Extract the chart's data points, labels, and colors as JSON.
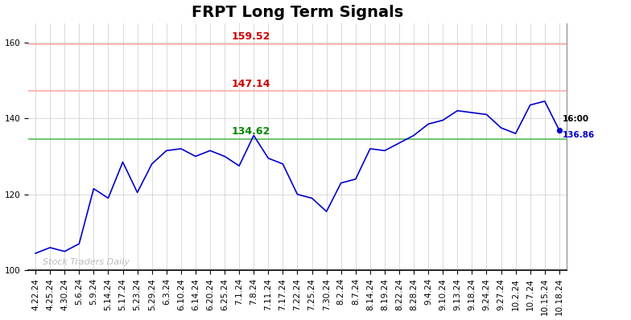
{
  "title": "FRPT Long Term Signals",
  "watermark": "Stock Traders Daily",
  "hline_red1": 159.52,
  "hline_red2": 147.14,
  "hline_green": 134.62,
  "label_red1": "159.52",
  "label_red2": "147.14",
  "label_green": "134.62",
  "last_price": 136.86,
  "last_label": "16:00",
  "ylim": [
    100,
    165
  ],
  "yticks": [
    100,
    120,
    140,
    160
  ],
  "x_labels": [
    "4.22.24",
    "4.25.24",
    "4.30.24",
    "5.6.24",
    "5.9.24",
    "5.14.24",
    "5.17.24",
    "5.23.24",
    "5.29.24",
    "6.3.24",
    "6.10.24",
    "6.14.24",
    "6.20.24",
    "6.25.24",
    "7.1.24",
    "7.8.24",
    "7.11.24",
    "7.17.24",
    "7.22.24",
    "7.25.24",
    "7.30.24",
    "8.2.24",
    "8.7.24",
    "8.14.24",
    "8.19.24",
    "8.22.24",
    "8.28.24",
    "9.4.24",
    "9.10.24",
    "9.13.24",
    "9.18.24",
    "9.24.24",
    "9.27.24",
    "10.2.24",
    "10.7.24",
    "10.15.24",
    "10.18.24"
  ],
  "prices": [
    104.5,
    106.0,
    105.0,
    107.0,
    121.5,
    119.0,
    128.5,
    120.5,
    128.0,
    131.5,
    132.0,
    130.0,
    131.5,
    130.0,
    127.5,
    135.5,
    129.5,
    128.0,
    120.0,
    119.0,
    115.5,
    123.0,
    124.0,
    132.0,
    131.5,
    133.5,
    135.5,
    138.5,
    139.5,
    142.0,
    141.5,
    141.0,
    137.5,
    136.0,
    143.5,
    144.5,
    136.86
  ],
  "line_color": "#0000cc",
  "hline_red_color": "#ffaaaa",
  "hline_green_color": "#55bb55",
  "label_red_color": "#cc0000",
  "label_green_color": "#008800",
  "background_color": "#ffffff",
  "grid_color": "#cccccc",
  "title_fontsize": 14,
  "tick_fontsize": 7.5,
  "watermark_color": "#bbbbbb"
}
